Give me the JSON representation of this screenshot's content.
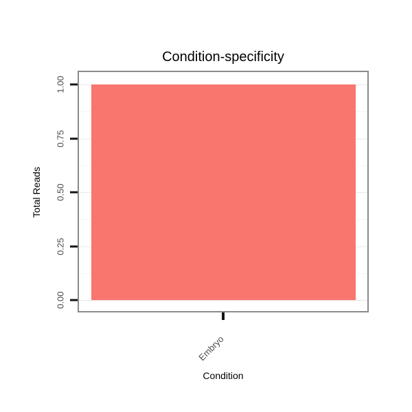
{
  "title": "Condition-specificity",
  "axes": {
    "x_title": "Condition",
    "y_title": "Total Reads",
    "y_tick_labels": [
      "1.00",
      "0.75",
      "0.50",
      "0.25",
      "0.00"
    ],
    "x_tick_labels": [
      "Embryo"
    ]
  },
  "colors": {
    "bar_fill": "#F8766D",
    "panel_border": "#8A8A8A",
    "grid_major": "#E9E9E9",
    "grid_minor": "#F5F5F5",
    "tick_mark": "#141414",
    "tick_text": "#4D4D4D",
    "title_text": "#000000"
  },
  "chart_data": {
    "type": "bar",
    "title": "Condition-specificity",
    "categories": [
      "Embryo"
    ],
    "values": [
      1.0
    ],
    "xlabel": "Condition",
    "ylabel": "Total Reads",
    "ylim": [
      0,
      1
    ],
    "yticks": [
      0,
      0.25,
      0.5,
      0.75,
      1
    ],
    "bar_color": "#F8766D",
    "grid": true,
    "legend": false
  }
}
